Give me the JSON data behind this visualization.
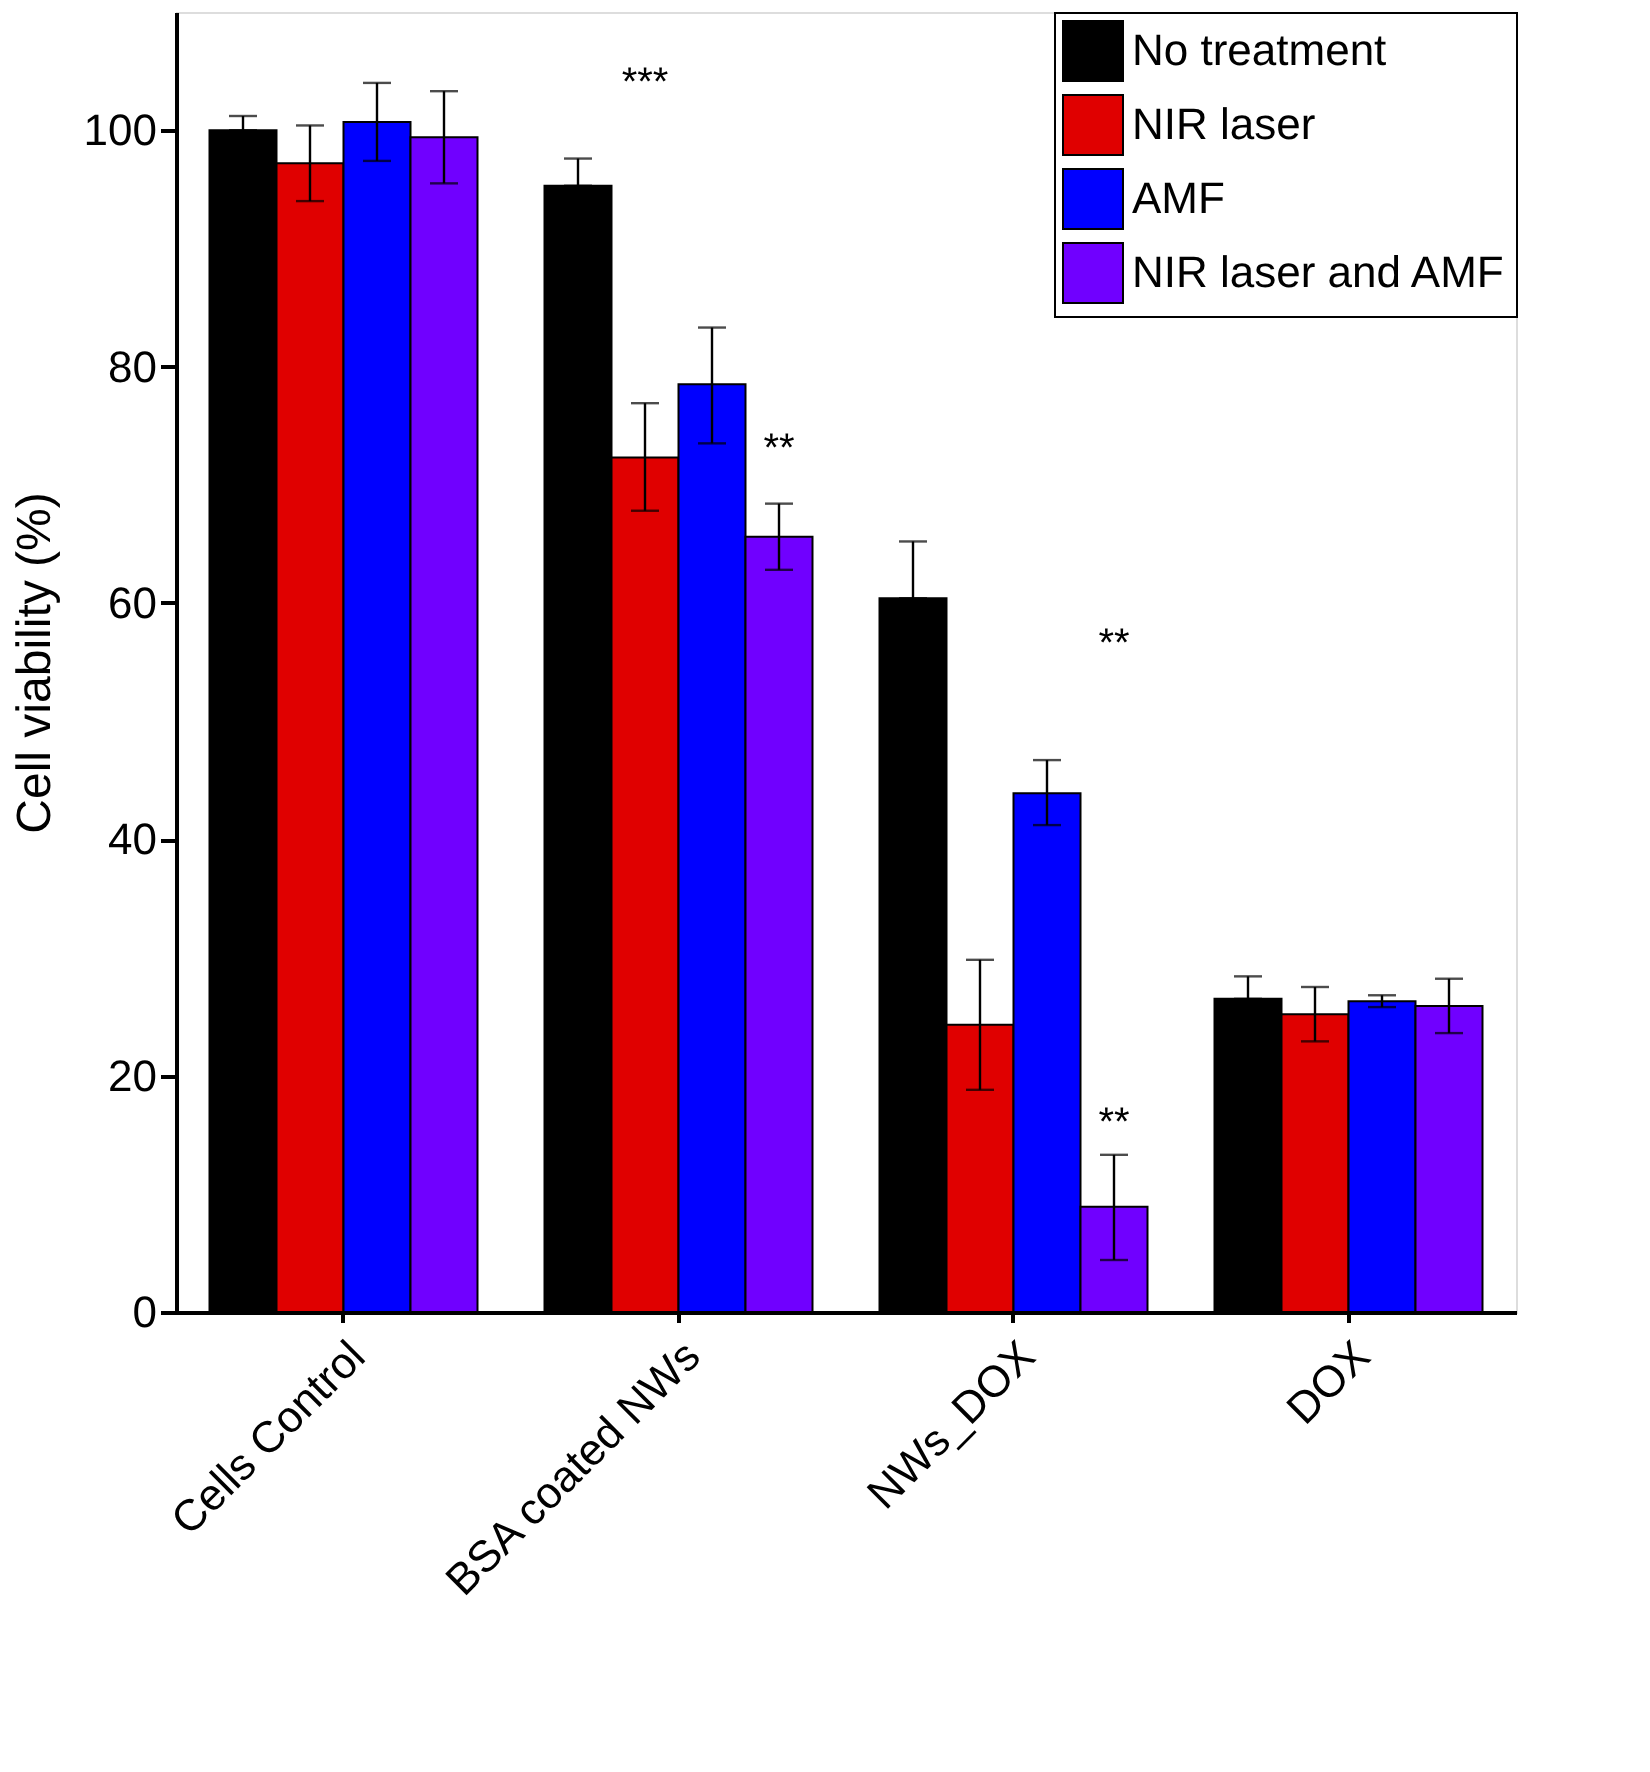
{
  "chart_data": {
    "type": "bar",
    "ylabel": "Cell viability (%)",
    "categories": [
      "Cells Control",
      "BSA coated NWs",
      "NWs_DOX",
      "DOX"
    ],
    "series": [
      {
        "name": "No treatment",
        "color": "#000000",
        "values": [
          100,
          95.3,
          60.4,
          26.5
        ],
        "errors": [
          [
            100,
            101.2
          ],
          [
            95.3,
            97.6
          ],
          [
            60.4,
            65.2
          ],
          [
            26.5,
            28.4
          ]
        ]
      },
      {
        "name": "NIR laser",
        "color": "#e00000",
        "values": [
          97.2,
          72.3,
          24.3,
          25.2
        ],
        "errors": [
          [
            94,
            100.4
          ],
          [
            67.8,
            76.9
          ],
          [
            18.8,
            29.8
          ],
          [
            22.9,
            27.5
          ]
        ]
      },
      {
        "name": "AMF",
        "color": "#0000ff",
        "values": [
          100.7,
          78.5,
          43.9,
          26.3
        ],
        "errors": [
          [
            97.4,
            104
          ],
          [
            73.5,
            83.3
          ],
          [
            41.2,
            46.7
          ],
          [
            25.8,
            26.8
          ]
        ]
      },
      {
        "name": "NIR laser and AMF",
        "color": "#7000ff",
        "values": [
          99.4,
          65.6,
          8.9,
          25.9
        ],
        "errors": [
          [
            95.5,
            103.3
          ],
          [
            62.8,
            68.4
          ],
          [
            4.4,
            13.3
          ],
          [
            23.6,
            28.2
          ]
        ]
      }
    ],
    "ylim": [
      0,
      110
    ],
    "yticks": [
      0,
      20,
      40,
      60,
      80,
      100
    ],
    "grid": false,
    "legend": "top right",
    "annotations": [
      "***",
      "**",
      "**",
      "**"
    ]
  }
}
